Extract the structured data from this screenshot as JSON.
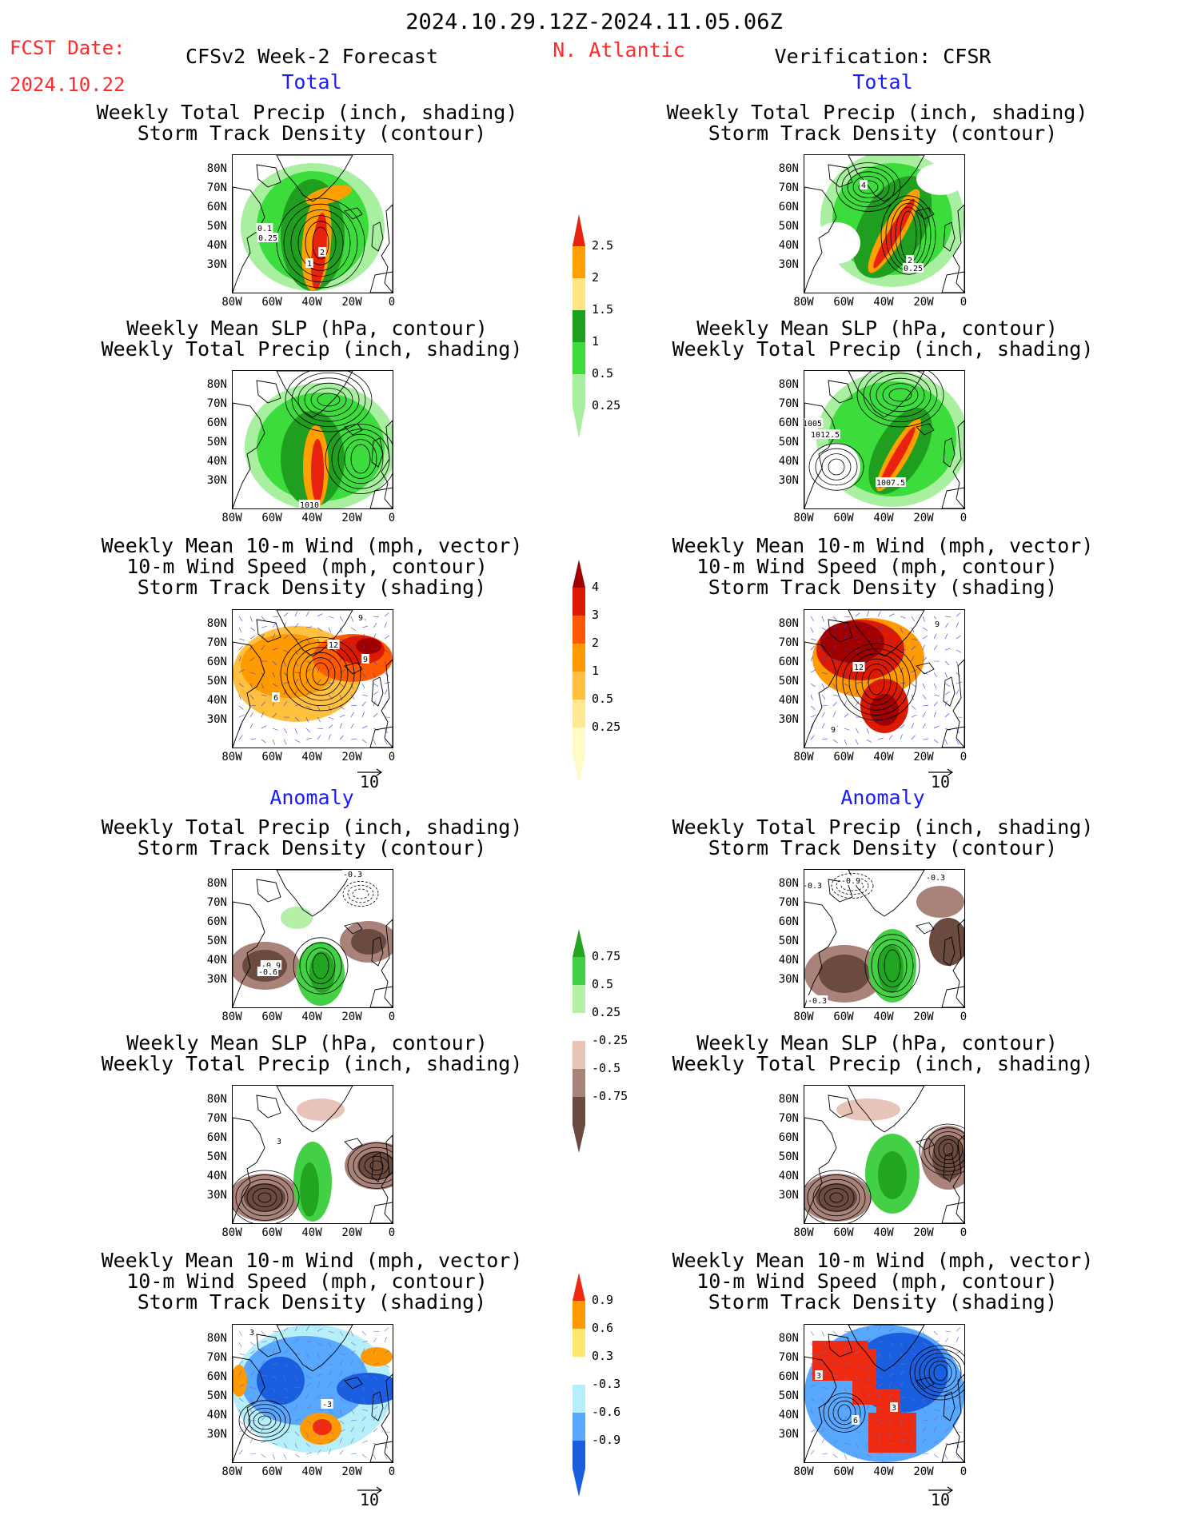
{
  "header": {
    "date_range": "2024.10.29.12Z-2024.11.05.06Z",
    "fcst_date_label": "FCST Date:",
    "fcst_date_value": "2024.10.22",
    "forecast_label": "CFSv2 Week-2 Forecast",
    "region": "N. Atlantic",
    "verification_label": "Verification: CFSR"
  },
  "sections": {
    "total_left": "Total",
    "total_right": "Total",
    "anomaly_left": "Anomaly",
    "anomaly_right": "Anomaly"
  },
  "panel_titles": {
    "precip_storm": [
      "Weekly Total Precip (inch, shading)",
      "Storm Track Density (contour)"
    ],
    "slp_precip": [
      "Weekly Mean SLP (hPa, contour)",
      "Weekly Total Precip (inch, shading)"
    ],
    "wind_storm": [
      "Weekly Mean 10-m Wind (mph, vector)",
      "10-m Wind Speed (mph, contour)",
      "Storm Track Density (shading)"
    ]
  },
  "axes": {
    "lat_ticks": [
      "80N",
      "70N",
      "60N",
      "50N",
      "40N",
      "30N"
    ],
    "lon_ticks": [
      "80W",
      "60W",
      "40W",
      "20W",
      "0"
    ],
    "vector_ref": "10"
  },
  "contour_labels": {
    "p1_left": [
      "0.1",
      "0.25",
      "2",
      "1"
    ],
    "p1_right": [
      "4",
      "2",
      "0.25"
    ],
    "p2_left": [
      "1010"
    ],
    "p2_right": [
      "1005",
      "1012.5",
      "1007.5"
    ],
    "p3_left": [
      "9",
      "12",
      "9",
      "6"
    ],
    "p3_right": [
      "9",
      "12",
      "9"
    ],
    "p4_left": [
      "-0.3",
      "-0.9",
      "-0.6"
    ],
    "p4_right": [
      "-0.9",
      "-0.3",
      "-0.3",
      "-0.3"
    ],
    "p6_left": [
      "3",
      "-3"
    ],
    "p6_right": [
      "3",
      "6",
      "3"
    ]
  },
  "colorbars": {
    "precip_total": {
      "labels": [
        "2.5",
        "2",
        "1.5",
        "1",
        "0.5",
        "0.25"
      ],
      "colors": [
        "#e8220f",
        "#ff9f00",
        "#ffe680",
        "#1f9e1f",
        "#3bdc3b",
        "#a8f0a0"
      ]
    },
    "storm_total": {
      "labels": [
        "4",
        "3",
        "2",
        "1",
        "0.5",
        "0.25"
      ],
      "colors": [
        "#a00000",
        "#dd1a00",
        "#ff5a00",
        "#ff9a00",
        "#ffc040",
        "#ffe890",
        "#fffac8"
      ]
    },
    "precip_anom": {
      "labels": [
        "0.75",
        "0.5",
        "0.25",
        "-0.25",
        "-0.5",
        "-0.75"
      ],
      "colors": [
        "#22a622",
        "#44d044",
        "#b6f0a8",
        "#ffffff",
        "#e8c4b8",
        "#a9837a",
        "#6b4a3f"
      ]
    },
    "storm_anom": {
      "labels": [
        "0.9",
        "0.6",
        "0.3",
        "-0.3",
        "-0.6",
        "-0.9"
      ],
      "colors": [
        "#ee2a10",
        "#ff9a00",
        "#ffe670",
        "#ffffff",
        "#b6eefa",
        "#58a8ff",
        "#1a5ee0"
      ]
    }
  },
  "colors": {
    "red_text": "#ff2a2a",
    "blue_text": "#1a1aff",
    "ocean": "#ffffff",
    "land_outline": "#000000"
  }
}
